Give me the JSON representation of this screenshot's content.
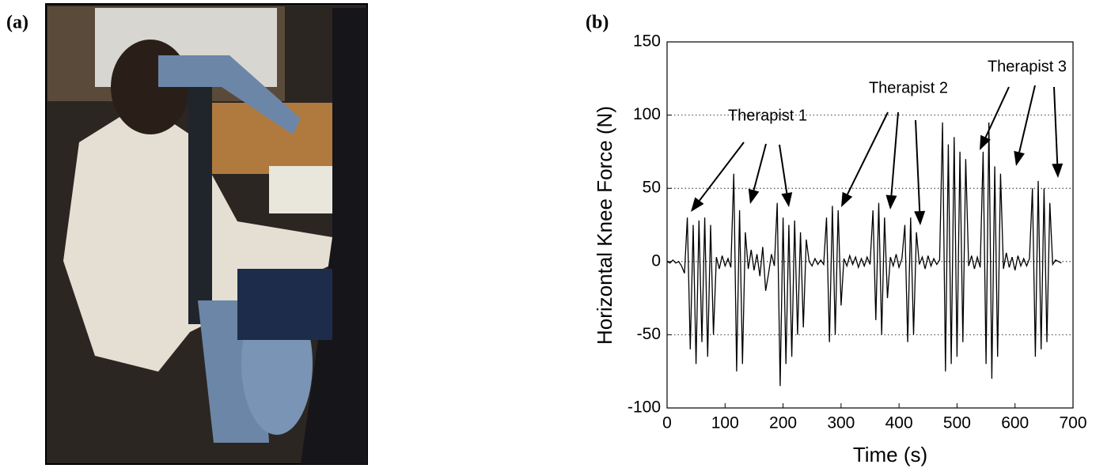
{
  "figure": {
    "panel_labels": [
      "(a)",
      "(b)"
    ]
  },
  "chart_data": {
    "type": "line",
    "x_label": "Time (s)",
    "y_label": "Horizontal Knee Force (N)",
    "annotations": [
      "Therapist 1",
      "Therapist 2",
      "Therapist 3"
    ],
    "xlim": [
      0,
      700
    ],
    "ylim": [
      -100,
      150
    ],
    "xticks": [
      0,
      100,
      200,
      300,
      400,
      500,
      600,
      700
    ],
    "yticks": [
      -100,
      -50,
      0,
      50,
      100,
      150
    ],
    "grid": true,
    "x": [
      0,
      5,
      10,
      15,
      20,
      25,
      30,
      35,
      40,
      45,
      50,
      55,
      60,
      65,
      70,
      75,
      80,
      85,
      90,
      95,
      100,
      105,
      110,
      115,
      120,
      125,
      130,
      135,
      140,
      145,
      150,
      155,
      160,
      165,
      170,
      175,
      180,
      185,
      190,
      195,
      200,
      205,
      210,
      215,
      220,
      225,
      230,
      235,
      240,
      245,
      250,
      255,
      260,
      265,
      270,
      275,
      280,
      285,
      290,
      295,
      300,
      305,
      310,
      315,
      320,
      325,
      330,
      335,
      340,
      345,
      350,
      355,
      360,
      365,
      370,
      375,
      380,
      385,
      390,
      395,
      400,
      405,
      410,
      415,
      420,
      425,
      430,
      435,
      440,
      445,
      450,
      455,
      460,
      465,
      470,
      475,
      480,
      485,
      490,
      495,
      500,
      505,
      510,
      515,
      520,
      525,
      530,
      535,
      540,
      545,
      550,
      555,
      560,
      565,
      570,
      575,
      580,
      585,
      590,
      595,
      600,
      605,
      610,
      615,
      620,
      625,
      630,
      635,
      640,
      645,
      650,
      655,
      660,
      665,
      670,
      675,
      680
    ],
    "series": [
      {
        "color": "#000000",
        "values": [
          0,
          -1,
          1,
          -1,
          0,
          -3,
          -8,
          30,
          -60,
          25,
          -70,
          28,
          -55,
          30,
          -65,
          25,
          -50,
          3,
          -5,
          4,
          -3,
          2,
          -4,
          60,
          -75,
          35,
          -70,
          20,
          -5,
          8,
          -6,
          5,
          -10,
          10,
          -20,
          -8,
          5,
          -3,
          40,
          -85,
          30,
          -70,
          25,
          -65,
          28,
          -50,
          20,
          -45,
          15,
          0,
          -3,
          2,
          -2,
          1,
          -2,
          30,
          -55,
          38,
          -50,
          35,
          -30,
          2,
          -3,
          4,
          -2,
          3,
          -4,
          2,
          -3,
          3,
          -2,
          35,
          -40,
          40,
          -50,
          30,
          -25,
          3,
          -3,
          5,
          -4,
          2,
          25,
          -55,
          30,
          -50,
          20,
          -2,
          3,
          -5,
          4,
          -3,
          2,
          -2,
          1,
          95,
          -75,
          80,
          -70,
          85,
          -65,
          75,
          -55,
          70,
          -3,
          4,
          -5,
          3,
          -4,
          75,
          -70,
          95,
          -80,
          65,
          -65,
          60,
          -5,
          6,
          -4,
          3,
          -6,
          4,
          -3,
          2,
          -3,
          2,
          50,
          -65,
          55,
          -60,
          50,
          -55,
          40,
          -2,
          1,
          0,
          -1
        ]
      }
    ]
  }
}
